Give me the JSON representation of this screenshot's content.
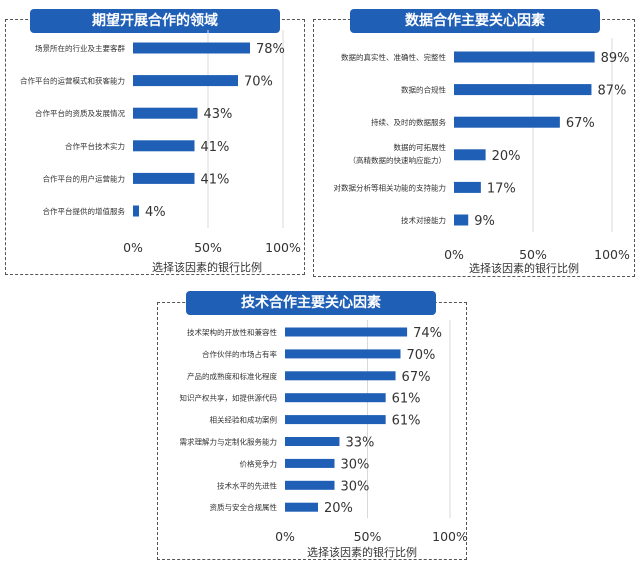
{
  "colors": {
    "bar": "#1f5fb5",
    "grid": "#d9d9d9",
    "title_bg": "#1f5fb5"
  },
  "chart_data": [
    {
      "type": "bar",
      "orientation": "horizontal",
      "title": "期望开展合作的领域",
      "categories": [
        "场景所在的行业及主要客群",
        "合作平台的运营模式和获客能力",
        "合作平台的资质及发展情况",
        "合作平台技术实力",
        "合作平台的用户运营能力",
        "合作平台提供的增值服务"
      ],
      "values": [
        78,
        70,
        43,
        41,
        41,
        4
      ],
      "value_labels": [
        "78%",
        "70%",
        "43%",
        "41%",
        "41%",
        "4%"
      ],
      "xticks": [
        "0%",
        "50%",
        "100%"
      ],
      "xlim": [
        0,
        100
      ],
      "xlabel": "选择该因素的银行比例",
      "grid": true
    },
    {
      "type": "bar",
      "orientation": "horizontal",
      "title": "数据合作主要关心因素",
      "categories": [
        "数据的真实性、准确性、完整性",
        "数据的合规性",
        "持续、及时的数据服务",
        "数据的可拓展性",
        "对数据分析等相关功能的支持能力",
        "技术对接能力"
      ],
      "category_sublabels": [
        "",
        "",
        "",
        "（高精数据的快速响应能力）",
        "",
        ""
      ],
      "values": [
        89,
        87,
        67,
        20,
        17,
        9
      ],
      "value_labels": [
        "89%",
        "87%",
        "67%",
        "20%",
        "17%",
        "9%"
      ],
      "xticks": [
        "0%",
        "50%",
        "100%"
      ],
      "xlim": [
        0,
        100
      ],
      "xlabel": "选择该因素的银行比例",
      "grid": true
    },
    {
      "type": "bar",
      "orientation": "horizontal",
      "title": "技术合作主要关心因素",
      "categories": [
        "技术架构的开放性和兼容性",
        "合作伙伴的市场占有率",
        "产品的成熟度和标准化程度",
        "知识产权共享，如提供源代码",
        "相关经验和成功案例",
        "需求理解力与定制化服务能力",
        "价格竞争力",
        "技术水平的先进性",
        "资质与安全合规属性"
      ],
      "values": [
        74,
        70,
        67,
        61,
        61,
        33,
        30,
        30,
        20
      ],
      "value_labels": [
        "74%",
        "70%",
        "67%",
        "61%",
        "61%",
        "33%",
        "30%",
        "30%",
        "20%"
      ],
      "xticks": [
        "0%",
        "50%",
        "100%"
      ],
      "xlim": [
        0,
        100
      ],
      "xlabel": "选择该因素的银行比例",
      "grid": true
    }
  ]
}
